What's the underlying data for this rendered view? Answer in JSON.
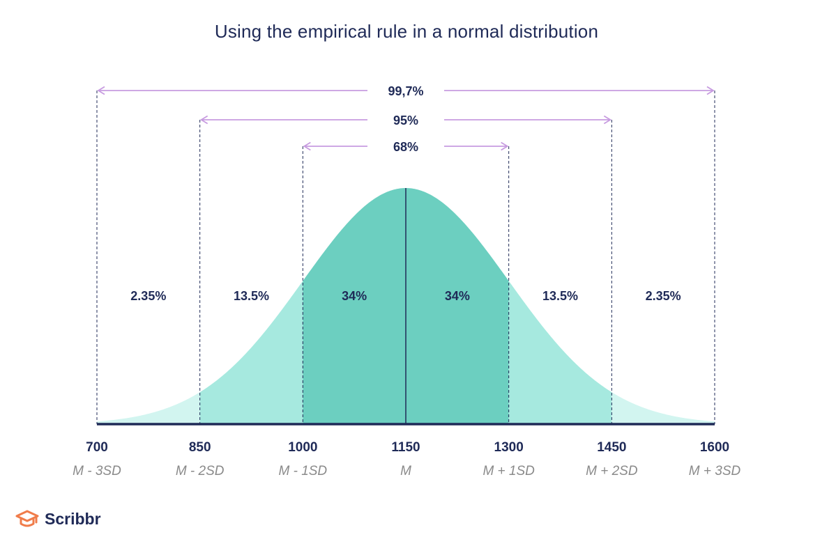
{
  "chart_data": {
    "type": "area",
    "title": "Using the empirical rule in a normal distribution",
    "distribution": "normal",
    "mean": 1150,
    "sd": 150,
    "xlim": [
      700,
      1600
    ],
    "x_ticks": [
      {
        "value": 700,
        "label": "700",
        "sublabel": "M - 3SD"
      },
      {
        "value": 850,
        "label": "850",
        "sublabel": "M - 2SD"
      },
      {
        "value": 1000,
        "label": "1000",
        "sublabel": "M - 1SD"
      },
      {
        "value": 1150,
        "label": "1150",
        "sublabel": "M"
      },
      {
        "value": 1300,
        "label": "1300",
        "sublabel": "M + 1SD"
      },
      {
        "value": 1450,
        "label": "1450",
        "sublabel": "M + 2SD"
      },
      {
        "value": 1600,
        "label": "1600",
        "sublabel": "M + 3SD"
      }
    ],
    "regions": [
      {
        "from": 700,
        "to": 850,
        "label": "2.35%",
        "value": 2.35
      },
      {
        "from": 850,
        "to": 1000,
        "label": "13.5%",
        "value": 13.5
      },
      {
        "from": 1000,
        "to": 1150,
        "label": "34%",
        "value": 34
      },
      {
        "from": 1150,
        "to": 1300,
        "label": "34%",
        "value": 34
      },
      {
        "from": 1300,
        "to": 1450,
        "label": "13.5%",
        "value": 13.5
      },
      {
        "from": 1450,
        "to": 1600,
        "label": "2.35%",
        "value": 2.35
      }
    ],
    "spans": [
      {
        "from": 700,
        "to": 1600,
        "label": "99,7%"
      },
      {
        "from": 850,
        "to": 1450,
        "label": "95%"
      },
      {
        "from": 1000,
        "to": 1300,
        "label": "68%"
      }
    ],
    "colors": {
      "inner": "#6ccfc0",
      "middle": "#a6e9df",
      "outer": "#d2f5f0",
      "arrow": "#c79be0",
      "axis": "#1f2a57",
      "text": "#1f2a57",
      "sublabel": "#8a8a8a",
      "logo": "#f07c4a"
    }
  },
  "brand": {
    "name": "Scribbr",
    "icon": "graduation-cap-icon"
  }
}
